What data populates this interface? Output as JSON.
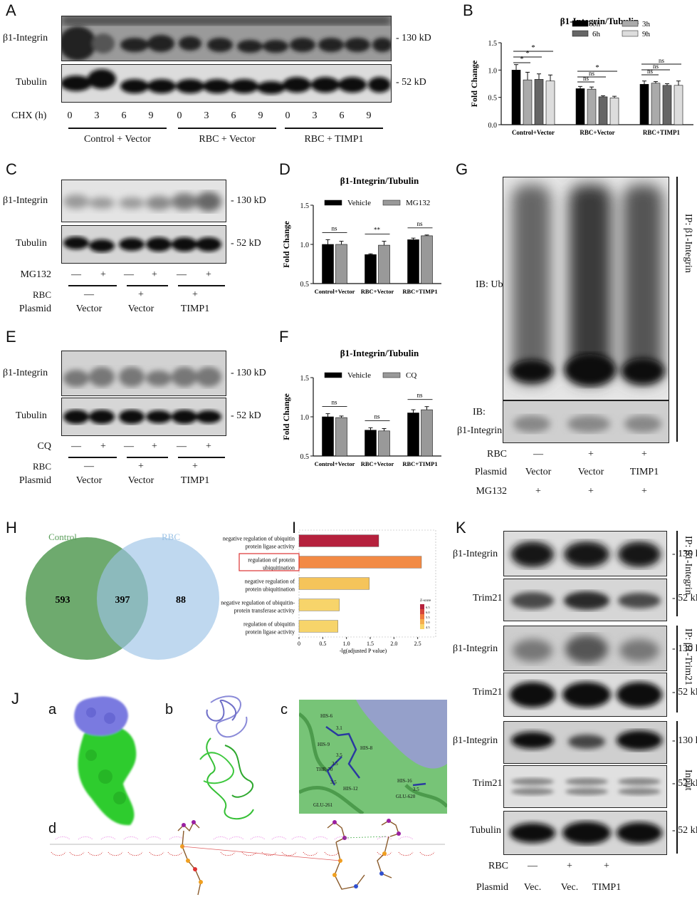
{
  "panels": {
    "A": "A",
    "B": "B",
    "C": "C",
    "D": "D",
    "E": "E",
    "F": "F",
    "G": "G",
    "H": "H",
    "I": "I",
    "J": "J",
    "K": "K",
    "Ja": "a",
    "Jb": "b",
    "Jc": "c",
    "Jd": "d"
  },
  "blots": {
    "b1integrin": "β1-Integrin",
    "tubulin": "Tubulin",
    "trim21": "Trim21",
    "kd130": "- 130 kD",
    "kd52": "- 52 kD",
    "ib_ub": "IB: Ub",
    "ib": "IB:",
    "ip_b1": "IP: β1-Integrin",
    "ip_trim": "IP: β1-Trim21",
    "input": "Input"
  },
  "panelA": {
    "chx_label": "CHX (h)",
    "times": [
      "0",
      "3",
      "6",
      "9",
      "0",
      "3",
      "6",
      "9",
      "0",
      "3",
      "6",
      "9"
    ],
    "groups": [
      "Control + Vector",
      "RBC + Vector",
      "RBC + TIMP1"
    ]
  },
  "panelC": {
    "row1": "MG132",
    "row2": "RBC",
    "row3": "Plasmid",
    "mg": [
      "—",
      "+",
      "—",
      "+",
      "—",
      "+"
    ],
    "rbc": [
      "—",
      "+",
      "+"
    ],
    "plasmid": [
      "Vector",
      "Vector",
      "TIMP1"
    ]
  },
  "panelE": {
    "row1": "CQ",
    "row2": "RBC",
    "row3": "Plasmid",
    "cq": [
      "—",
      "+",
      "—",
      "+",
      "—",
      "+"
    ],
    "rbc": [
      "—",
      "+",
      "+"
    ],
    "plasmid": [
      "Vector",
      "Vector",
      "TIMP1"
    ]
  },
  "panelG": {
    "rows": [
      "RBC",
      "Plasmid",
      "MG132"
    ],
    "rbc": [
      "—",
      "+",
      "+"
    ],
    "plasmid": [
      "Vector",
      "Vector",
      "TIMP1"
    ],
    "mg": [
      "+",
      "+",
      "+"
    ]
  },
  "panelK": {
    "rows": [
      "RBC",
      "Plasmid"
    ],
    "rbc": [
      "—",
      "+",
      "+"
    ],
    "plasmid": [
      "Vec.",
      "Vec.",
      "TIMP1"
    ]
  },
  "venn": {
    "left_name": "Control",
    "right_name": "RBC",
    "left": "593",
    "both": "397",
    "right": "88",
    "left_color": "#5a9e5a",
    "right_color": "#9cc3e6"
  },
  "chart_data": [
    {
      "type": "bar",
      "panel": "B",
      "title": "β1-Integrin/Tubulin",
      "ylabel": "Fold Change",
      "ylim": [
        0,
        1.5
      ],
      "yticks": [
        "0.0",
        "0.5",
        "1.0",
        "1.5"
      ],
      "categories": [
        "Control+Vector",
        "RBC+Vector",
        "RBC+TIMP1"
      ],
      "series": [
        {
          "name": "0h",
          "color": "#000000",
          "values": [
            1.0,
            0.66,
            0.74
          ],
          "err": [
            0.1,
            0.04,
            0.06
          ]
        },
        {
          "name": "3h",
          "color": "#aaaaaa",
          "values": [
            0.82,
            0.65,
            0.76
          ],
          "err": [
            0.14,
            0.04,
            0.03
          ]
        },
        {
          "name": "6h",
          "color": "#666666",
          "values": [
            0.83,
            0.51,
            0.72
          ],
          "err": [
            0.1,
            0.02,
            0.03
          ]
        },
        {
          "name": "9h",
          "color": "#dddddd",
          "values": [
            0.8,
            0.49,
            0.72
          ],
          "err": [
            0.11,
            0.03,
            0.08
          ]
        }
      ],
      "annotations": [
        "*",
        "*",
        "*",
        "ns",
        "ns",
        "*",
        "ns",
        "ns",
        "ns"
      ]
    },
    {
      "type": "bar",
      "panel": "D",
      "title": "β1-Integrin/Tubulin",
      "ylabel": "Fold Change",
      "ylim": [
        0.5,
        1.5
      ],
      "yticks": [
        "0.5",
        "1.0",
        "1.5"
      ],
      "categories": [
        "Control+Vector",
        "RBC+Vector",
        "RBC+TIMP1"
      ],
      "series": [
        {
          "name": "Vehicle",
          "color": "#000000",
          "values": [
            1.0,
            0.87,
            1.06
          ],
          "err": [
            0.06,
            0.01,
            0.02
          ]
        },
        {
          "name": "MG132",
          "color": "#999999",
          "values": [
            1.0,
            0.99,
            1.11
          ],
          "err": [
            0.04,
            0.05,
            0.01
          ]
        }
      ],
      "annotations": [
        "ns",
        "**",
        "ns"
      ]
    },
    {
      "type": "bar",
      "panel": "F",
      "title": "β1-Integrin/Tubulin",
      "ylabel": "Fold Change",
      "ylim": [
        0.5,
        1.5
      ],
      "yticks": [
        "0.5",
        "1.0",
        "1.5"
      ],
      "categories": [
        "Control+Vector",
        "RBC+Vector",
        "RBC+TIMP1"
      ],
      "series": [
        {
          "name": "Vehicle",
          "color": "#000000",
          "values": [
            1.0,
            0.83,
            1.05
          ],
          "err": [
            0.04,
            0.03,
            0.04
          ]
        },
        {
          "name": "CQ",
          "color": "#999999",
          "values": [
            0.99,
            0.82,
            1.09
          ],
          "err": [
            0.02,
            0.03,
            0.04
          ]
        }
      ],
      "annotations": [
        "ns",
        "ns",
        "ns"
      ]
    },
    {
      "type": "bar",
      "panel": "I",
      "orientation": "horizontal",
      "xlabel": "-lg(adjusted P value)",
      "xticks": [
        "0",
        "0.5",
        "1.0",
        "1.5",
        "2.0",
        "2.5"
      ],
      "xlim": [
        0,
        2.7
      ],
      "categories": [
        "negative regulation of ubiquitin protein ligase activity",
        "regulation of protein ubiquitination",
        "negative regulation of protein ubiquitination",
        "negative regulation of ubiquitin-protein transferase activity",
        "regulation of ubiquitin protein ligase activity"
      ],
      "values": [
        1.68,
        2.58,
        1.48,
        0.85,
        0.82
      ],
      "colors": [
        "#b5213d",
        "#f28a45",
        "#f5c45a",
        "#f7d46a",
        "#f7d46a"
      ],
      "legend_title": "Z-score",
      "legend_ticks": [
        "6.5",
        "6.0",
        "5.5",
        "5.0",
        "4.5"
      ]
    }
  ],
  "labelsI": [
    [
      "negative regulation of ubiquitin",
      "protein ligase activity"
    ],
    [
      "regulation of protein",
      "ubiquitination"
    ],
    [
      "negative regulation of",
      "protein ubiquitination"
    ],
    [
      "negative regulation of ubiquitin-",
      "protein transferase activity"
    ],
    [
      "regulation of ubiquitin",
      "protein ligase activity"
    ]
  ],
  "residues": [
    "HIS-6",
    "HIS-9",
    "HIS-8",
    "THR-70",
    "HIS-12",
    "HIS-16",
    "GLU-261",
    "GLU-620",
    "3.1",
    "3.5",
    "3.5",
    "3.5",
    "3.5"
  ]
}
